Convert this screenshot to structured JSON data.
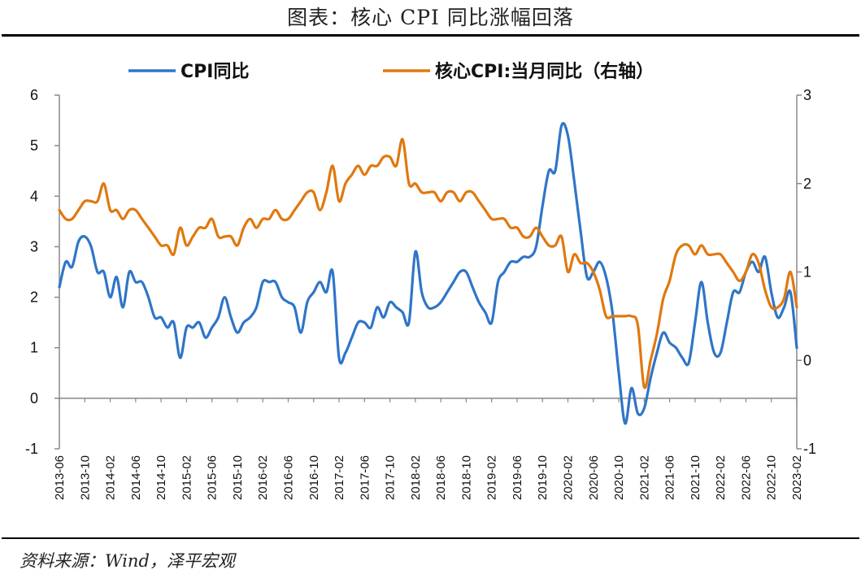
{
  "header": {
    "title": "图表：核心 CPI 同比涨幅回落"
  },
  "footer": {
    "source": "资料来源：Wind，泽平宏观"
  },
  "colors": {
    "cpi": "#2F75C8",
    "core": "#E0780F",
    "axis": "#000000"
  },
  "chart_data": {
    "type": "line",
    "x_labels": [
      "2013-06",
      "2013-10",
      "2014-02",
      "2014-06",
      "2014-10",
      "2015-02",
      "2015-06",
      "2015-10",
      "2016-02",
      "2016-06",
      "2016-10",
      "2017-02",
      "2017-06",
      "2017-10",
      "2018-02",
      "2018-06",
      "2018-10",
      "2019-02",
      "2019-06",
      "2019-10",
      "2020-02",
      "2020-06",
      "2020-10",
      "2021-02",
      "2021-06",
      "2021-10",
      "2022-02",
      "2022-06",
      "2022-10",
      "2023-02"
    ],
    "y_left": {
      "ticks": [
        "6",
        "5",
        "4",
        "3",
        "2",
        "1",
        "0",
        "-1"
      ],
      "min": -1,
      "max": 6
    },
    "y_right": {
      "ticks": [
        "3",
        "2",
        "1",
        "0",
        "-1"
      ],
      "min": -1,
      "max": 3
    },
    "legend": [
      {
        "label": "CPI同比",
        "color": "#2F75C8"
      },
      {
        "label": "核心CPI:当月同比（右轴）",
        "color": "#E0780F"
      }
    ],
    "series": [
      {
        "name": "CPI同比",
        "axis": "left",
        "color": "#2F75C8",
        "values": [
          2.2,
          2.7,
          2.6,
          3.1,
          3.2,
          3.0,
          2.5,
          2.5,
          2.0,
          2.4,
          1.8,
          2.5,
          2.3,
          2.3,
          2.0,
          1.6,
          1.6,
          1.4,
          1.5,
          0.8,
          1.4,
          1.4,
          1.5,
          1.2,
          1.4,
          1.6,
          2.0,
          1.6,
          1.3,
          1.5,
          1.6,
          1.8,
          2.3,
          2.3,
          2.3,
          2.0,
          1.9,
          1.8,
          1.3,
          1.9,
          2.1,
          2.3,
          2.1,
          2.5,
          0.8,
          0.9,
          1.2,
          1.5,
          1.5,
          1.4,
          1.8,
          1.6,
          1.9,
          1.8,
          1.7,
          1.5,
          2.9,
          2.1,
          1.8,
          1.8,
          1.9,
          2.1,
          2.3,
          2.5,
          2.5,
          2.2,
          1.9,
          1.7,
          1.5,
          2.3,
          2.5,
          2.7,
          2.7,
          2.8,
          2.8,
          3.0,
          3.8,
          4.5,
          4.5,
          5.4,
          5.2,
          4.3,
          3.3,
          2.4,
          2.5,
          2.7,
          2.4,
          1.7,
          0.5,
          -0.5,
          0.2,
          -0.3,
          -0.2,
          0.4,
          0.9,
          1.3,
          1.1,
          1.0,
          0.8,
          0.7,
          1.5,
          2.3,
          1.5,
          0.9,
          0.9,
          1.5,
          2.1,
          2.1,
          2.5,
          2.7,
          2.5,
          2.8,
          2.1,
          1.6,
          1.8,
          2.1,
          1.0
        ]
      },
      {
        "name": "核心CPI:当月同比（右轴）",
        "axis": "right",
        "color": "#E0780F",
        "values": [
          1.7,
          1.6,
          1.6,
          1.7,
          1.8,
          1.8,
          1.8,
          2.0,
          1.7,
          1.7,
          1.6,
          1.7,
          1.7,
          1.6,
          1.5,
          1.4,
          1.3,
          1.3,
          1.2,
          1.5,
          1.3,
          1.4,
          1.5,
          1.5,
          1.6,
          1.4,
          1.4,
          1.4,
          1.3,
          1.5,
          1.6,
          1.5,
          1.6,
          1.6,
          1.7,
          1.6,
          1.6,
          1.7,
          1.8,
          1.9,
          1.9,
          1.7,
          1.9,
          2.2,
          1.8,
          2.0,
          2.1,
          2.2,
          2.1,
          2.2,
          2.2,
          2.3,
          2.3,
          2.2,
          2.5,
          2.0,
          2.0,
          1.9,
          1.9,
          1.9,
          1.8,
          1.9,
          1.9,
          1.8,
          1.9,
          1.9,
          1.8,
          1.7,
          1.6,
          1.6,
          1.6,
          1.5,
          1.5,
          1.4,
          1.4,
          1.5,
          1.4,
          1.3,
          1.3,
          1.4,
          1.0,
          1.2,
          1.1,
          1.1,
          1.0,
          0.8,
          0.5,
          0.5,
          0.5,
          0.5,
          0.5,
          0.4,
          -0.3,
          0.0,
          0.3,
          0.7,
          0.9,
          1.2,
          1.3,
          1.3,
          1.2,
          1.3,
          1.2,
          1.2,
          1.2,
          1.1,
          1.0,
          0.9,
          1.0,
          1.2,
          1.1,
          0.8,
          0.6,
          0.6,
          0.7,
          1.0,
          0.6
        ]
      }
    ]
  }
}
